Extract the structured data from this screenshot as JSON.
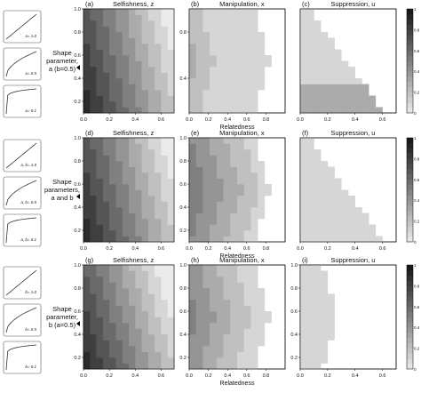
{
  "figure": {
    "rows": [
      {
        "shape_label": [
          "Shape",
          "parameter,",
          "a (b=0.5)"
        ],
        "thumbs": [
          {
            "label": "a= 1.0",
            "curvature": 1.0
          },
          {
            "label": "a= 0.5",
            "curvature": 0.5
          },
          {
            "label": "a= 0.1",
            "curvature": 0.1
          }
        ]
      },
      {
        "shape_label": [
          "Shape",
          "parameters,",
          "a and b"
        ],
        "thumbs": [
          {
            "label": "a, b= 1.0",
            "curvature": 1.0
          },
          {
            "label": "a, b= 0.5",
            "curvature": 0.5
          },
          {
            "label": "a, b= 0.1",
            "curvature": 0.1
          }
        ]
      },
      {
        "shape_label": [
          "Shape",
          "parameter,",
          "b (a=0.5)"
        ],
        "thumbs": [
          {
            "label": "b= 1.0",
            "curvature": 1.0
          },
          {
            "label": "b= 0.5",
            "curvature": 0.5
          },
          {
            "label": "b= 0.1",
            "curvature": 0.1
          }
        ]
      }
    ],
    "xlabel": "Relatedness",
    "colorbar_ticks": [
      "0",
      "0.2",
      "0.4",
      "0.6",
      "0.8",
      "1"
    ]
  },
  "chart_data": [
    {
      "type": "heatmap",
      "panel": "(a)",
      "title": "Selfishness, z",
      "xlabel": "",
      "ylabel": "",
      "xlim": [
        0,
        0.7
      ],
      "ylim": [
        0.1,
        1.0
      ],
      "xticks": [
        "0.0",
        "0.2",
        "0.4",
        "0.6"
      ],
      "yticks": [
        "0.2",
        "0.4",
        "0.6",
        "0.8",
        "1.0"
      ],
      "cols": 14,
      "rows": 18,
      "zlim": [
        0,
        1
      ],
      "description_of_values": "z decreases with relatedness; higher z at lower shape parameter",
      "boundary": null,
      "values_rule": "selfishness",
      "row_variant": "a"
    },
    {
      "type": "heatmap",
      "panel": "(b)",
      "title": "Manipulation, x",
      "xlabel": "Relatedness",
      "xlim": [
        0,
        1.0
      ],
      "ylim": [
        0.1,
        1.0
      ],
      "xticks": [
        "0.0",
        "0.2",
        "0.4",
        "0.6",
        "0.8"
      ],
      "yticks": [
        "0.4",
        "0.8"
      ],
      "cols": 14,
      "rows": 18,
      "zlim": [
        0,
        1
      ],
      "values_rule": "manipulation",
      "row_variant": "a"
    },
    {
      "type": "heatmap",
      "panel": "(c)",
      "title": "Suppression, u",
      "xlabel": "",
      "xlim": [
        0,
        0.7
      ],
      "ylim": [
        0.1,
        1.0
      ],
      "xticks": [
        "0.0",
        "0.2",
        "0.4",
        "0.6"
      ],
      "yticks": [],
      "cols": 14,
      "rows": 18,
      "zlim": [
        0,
        1
      ],
      "values_rule": "suppression",
      "row_variant": "a"
    },
    {
      "type": "heatmap",
      "panel": "(d)",
      "title": "Selfishness, z",
      "xlabel": "",
      "xlim": [
        0,
        0.7
      ],
      "ylim": [
        0.1,
        1.0
      ],
      "xticks": [
        "0.0",
        "0.2",
        "0.4",
        "0.6"
      ],
      "yticks": [
        "0.2",
        "0.4",
        "0.6",
        "0.8",
        "1.0"
      ],
      "cols": 14,
      "rows": 18,
      "zlim": [
        0,
        1
      ],
      "values_rule": "selfishness",
      "row_variant": "ab"
    },
    {
      "type": "heatmap",
      "panel": "(e)",
      "title": "Manipulation, x",
      "xlabel": "Relatedness",
      "xlim": [
        0,
        1.0
      ],
      "ylim": [
        0.1,
        1.0
      ],
      "xticks": [
        "0.0",
        "0.2",
        "0.4",
        "0.6",
        "0.8"
      ],
      "yticks": [
        "0.2",
        "0.4",
        "0.6",
        "0.8",
        "1.0"
      ],
      "cols": 14,
      "rows": 18,
      "zlim": [
        0,
        1
      ],
      "values_rule": "manipulation",
      "row_variant": "ab"
    },
    {
      "type": "heatmap",
      "panel": "(f)",
      "title": "Suppression, u",
      "xlabel": "",
      "xlim": [
        0,
        0.7
      ],
      "ylim": [
        0.1,
        1.0
      ],
      "xticks": [
        "0.0",
        "0.2",
        "0.4",
        "0.6"
      ],
      "yticks": [],
      "cols": 14,
      "rows": 18,
      "zlim": [
        0,
        1
      ],
      "values_rule": "suppression",
      "row_variant": "ab"
    },
    {
      "type": "heatmap",
      "panel": "(g)",
      "title": "Selfishness, z",
      "xlabel": "",
      "xlim": [
        0,
        0.7
      ],
      "ylim": [
        0.1,
        1.0
      ],
      "xticks": [
        "0.0",
        "0.2",
        "0.4",
        "0.6"
      ],
      "yticks": [
        "0.2",
        "0.4",
        "0.6",
        "0.8",
        "1.0"
      ],
      "cols": 14,
      "rows": 18,
      "zlim": [
        0,
        1
      ],
      "values_rule": "selfishness",
      "row_variant": "b"
    },
    {
      "type": "heatmap",
      "panel": "(h)",
      "title": "Manipulation, x",
      "xlabel": "Relatedness",
      "xlim": [
        0,
        1.0
      ],
      "ylim": [
        0.1,
        1.0
      ],
      "xticks": [
        "0.0",
        "0.2",
        "0.4",
        "0.6",
        "0.8"
      ],
      "yticks": [
        "0.2",
        "0.4",
        "0.6",
        "0.8",
        "1.0"
      ],
      "cols": 14,
      "rows": 18,
      "zlim": [
        0,
        1
      ],
      "values_rule": "manipulation",
      "row_variant": "b"
    },
    {
      "type": "heatmap",
      "panel": "(i)",
      "title": "Suppression, u",
      "xlabel": "",
      "xlim": [
        0,
        0.7
      ],
      "ylim": [
        0.1,
        1.0
      ],
      "xticks": [
        "0.0",
        "0.2",
        "0.4",
        "0.6"
      ],
      "yticks": [
        "0.2",
        "0.4",
        "0.6",
        "0.8",
        "1.0"
      ],
      "cols": 14,
      "rows": 18,
      "zlim": [
        0,
        1
      ],
      "values_rule": "suppression",
      "row_variant": "b"
    }
  ]
}
